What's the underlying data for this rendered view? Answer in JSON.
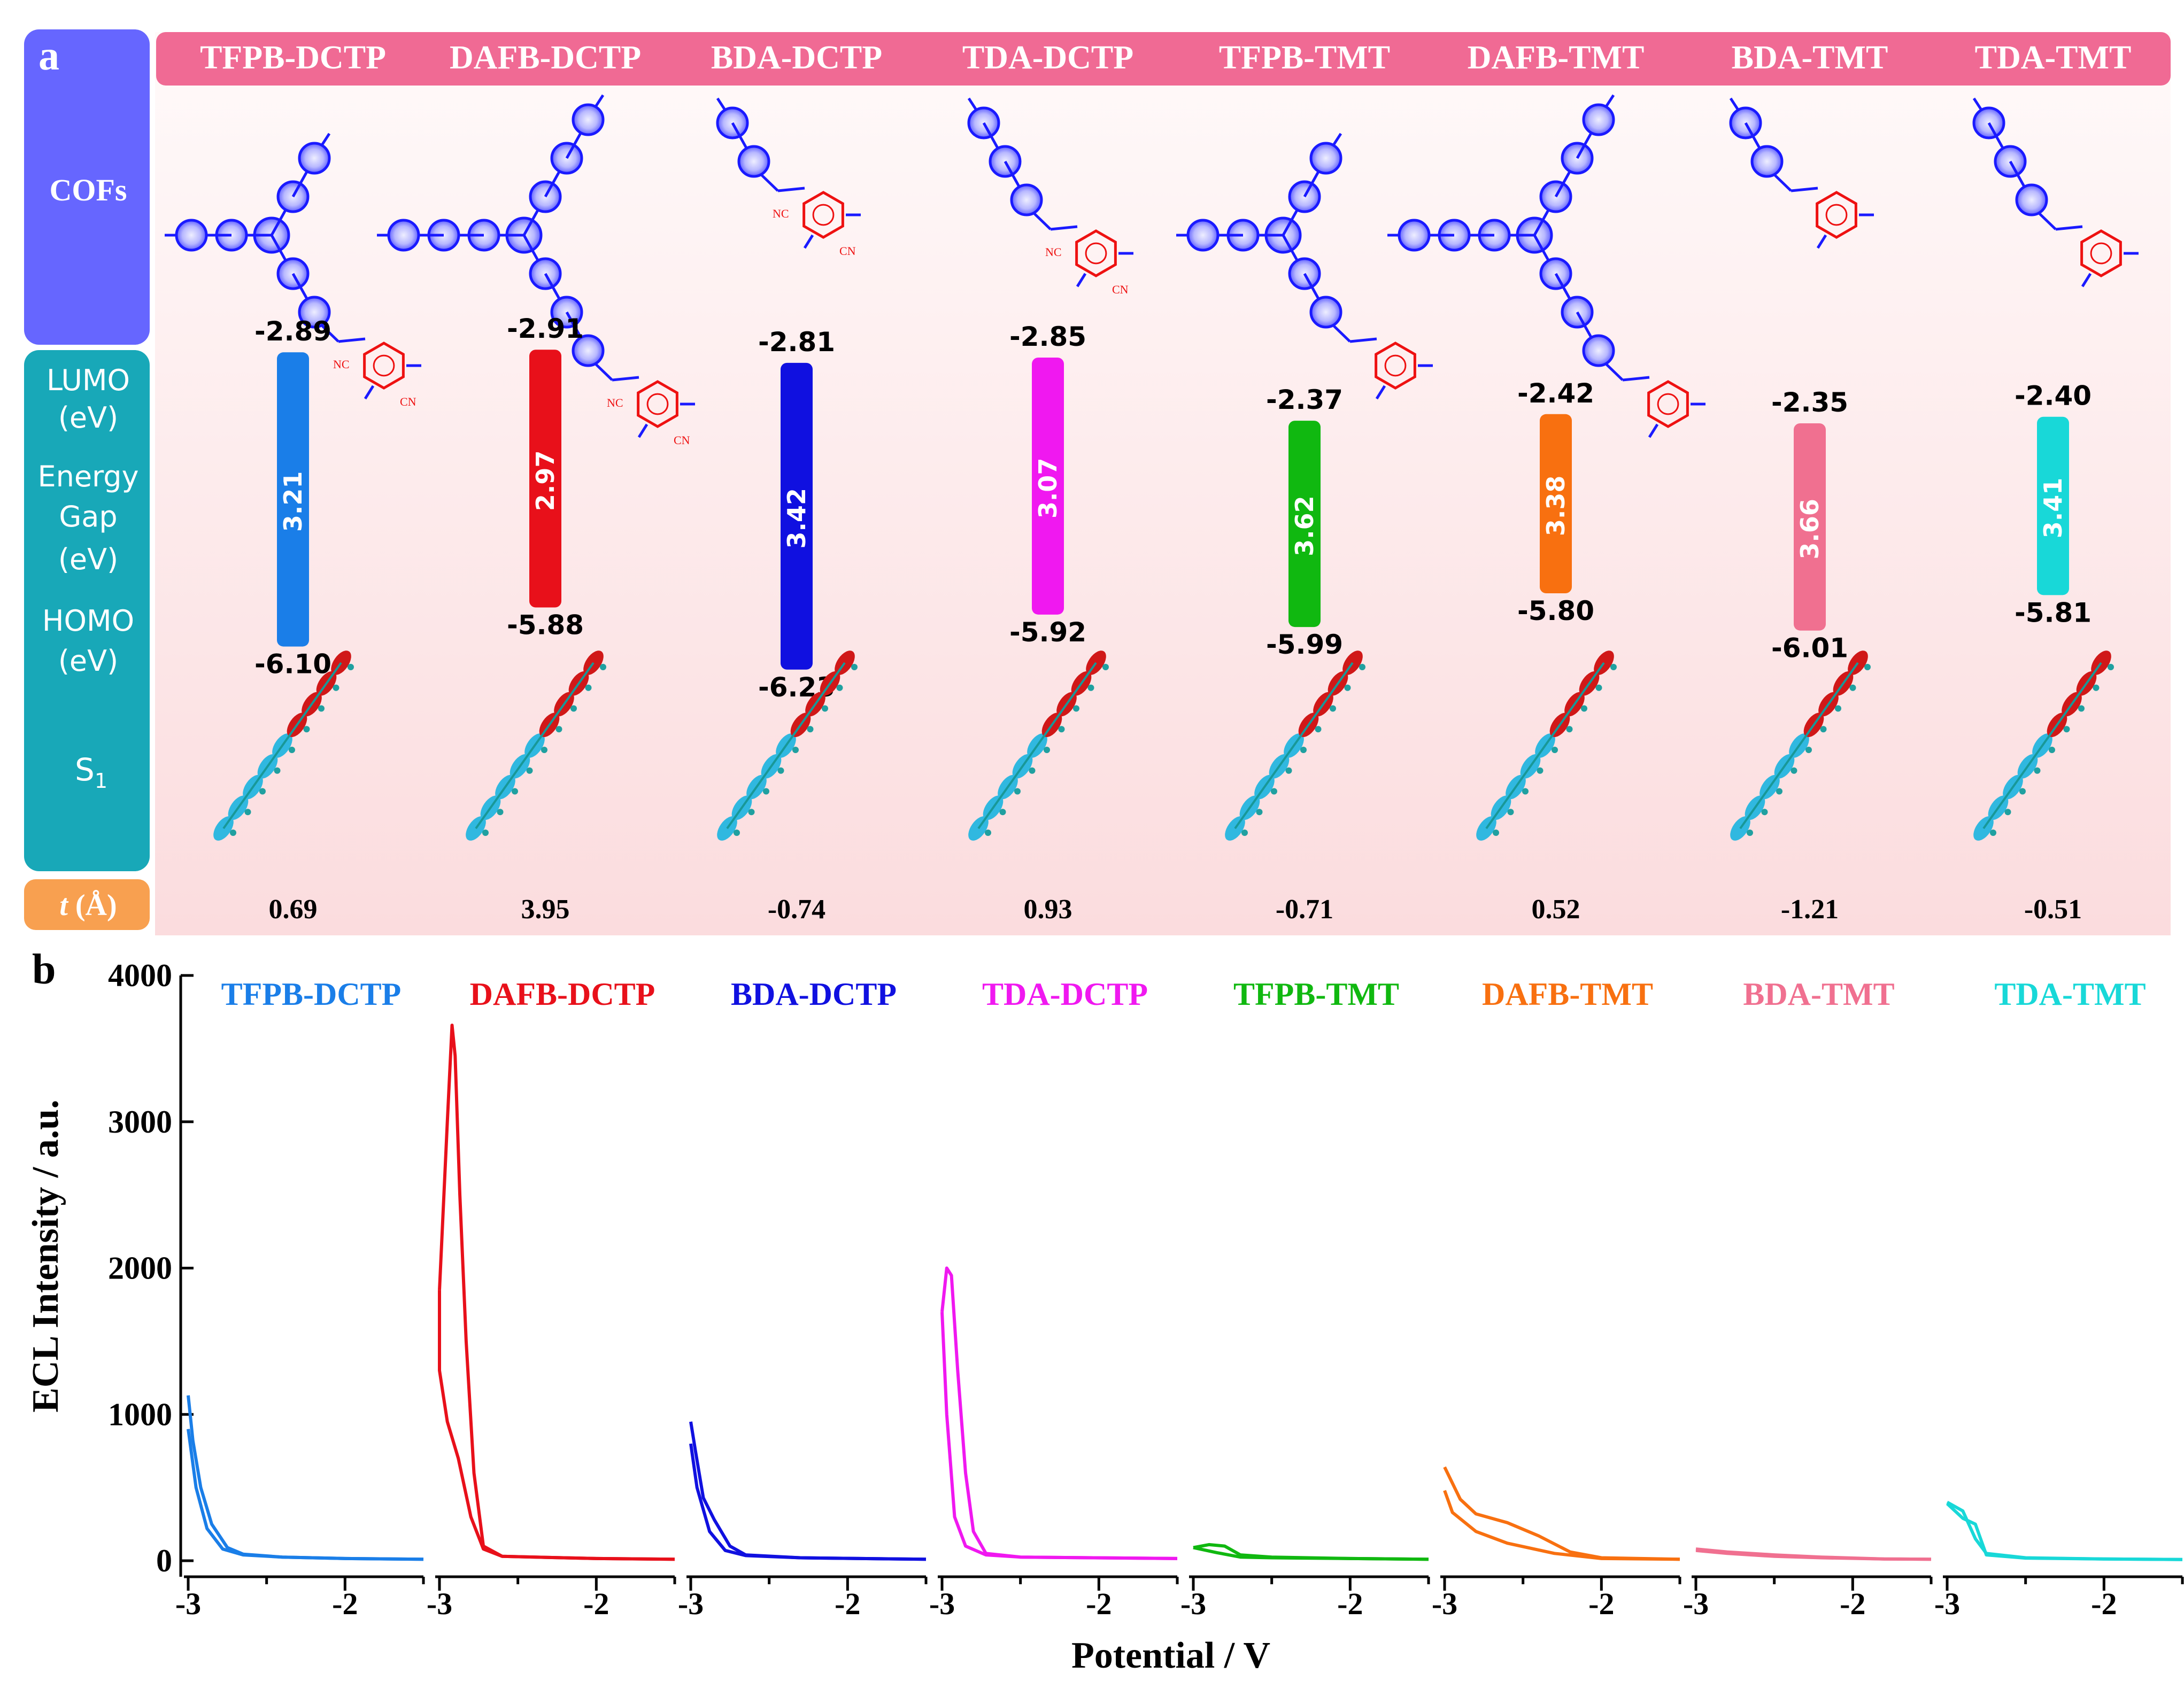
{
  "panel_a": {
    "letter": "a",
    "row_labels": {
      "cofs": "COFs",
      "lumo": [
        "LUMO",
        "(eV)"
      ],
      "gap": [
        "Energy",
        "Gap",
        "(eV)"
      ],
      "homo": [
        "HOMO",
        "(eV)"
      ],
      "s1": "S",
      "s1_sub": "1",
      "t_italic": "t",
      "t_rest": " (Å)"
    },
    "columns": [
      {
        "name": "TFPB-DCTP",
        "lumo": "-2.89",
        "gap": "3.21",
        "homo": "-6.10",
        "t": "0.69",
        "color": "#1a7ee8"
      },
      {
        "name": "DAFB-DCTP",
        "lumo": "-2.91",
        "gap": "2.97",
        "homo": "-5.88",
        "t": "3.95",
        "color": "#e8101a"
      },
      {
        "name": "BDA-DCTP",
        "lumo": "-2.81",
        "gap": "3.42",
        "homo": "-6.23",
        "t": "-0.74",
        "color": "#1010e0"
      },
      {
        "name": "TDA-DCTP",
        "lumo": "-2.85",
        "gap": "3.07",
        "homo": "-5.92",
        "t": "0.93",
        "color": "#f018f0"
      },
      {
        "name": "TFPB-TMT",
        "lumo": "-2.37",
        "gap": "3.62",
        "homo": "-5.99",
        "t": "-0.71",
        "color": "#10b810"
      },
      {
        "name": "DAFB-TMT",
        "lumo": "-2.42",
        "gap": "3.38",
        "homo": "-5.80",
        "t": "0.52",
        "color": "#f87010"
      },
      {
        "name": "BDA-TMT",
        "lumo": "-2.35",
        "gap": "3.66",
        "homo": "-6.01",
        "t": "-1.21",
        "color": "#f07090"
      },
      {
        "name": "TDA-TMT",
        "lumo": "-2.40",
        "gap": "3.41",
        "homo": "-5.81",
        "t": "-0.51",
        "color": "#18d8d8"
      }
    ]
  },
  "panel_b": {
    "letter": "b",
    "chart_data": {
      "type": "line",
      "ylabel": "ECL Intensity / a.u.",
      "xlabel": "Potential / V",
      "ylim": [
        0,
        4000
      ],
      "yticks": [
        "0",
        "1000",
        "2000",
        "3000",
        "4000"
      ],
      "xlim_each": [
        -3.0,
        -1.5
      ],
      "xticks": [
        "-3",
        "-2"
      ],
      "series": [
        {
          "name": "TFPB-DCTP",
          "color": "#1a7ee8",
          "forward": [
            [
              -3.0,
              1130
            ],
            [
              -2.97,
              820
            ],
            [
              -2.92,
              500
            ],
            [
              -2.85,
              250
            ],
            [
              -2.75,
              90
            ],
            [
              -2.65,
              45
            ],
            [
              -2.4,
              25
            ],
            [
              -2.0,
              15
            ],
            [
              -1.5,
              10
            ]
          ],
          "reverse": [
            [
              -1.5,
              10
            ],
            [
              -2.0,
              15
            ],
            [
              -2.4,
              25
            ],
            [
              -2.65,
              40
            ],
            [
              -2.78,
              80
            ],
            [
              -2.88,
              220
            ],
            [
              -2.95,
              500
            ],
            [
              -3.0,
              900
            ]
          ]
        },
        {
          "name": "DAFB-DCTP",
          "color": "#e8101a",
          "forward": [
            [
              -3.0,
              1850
            ],
            [
              -2.95,
              3000
            ],
            [
              -2.92,
              3660
            ],
            [
              -2.9,
              3450
            ],
            [
              -2.87,
              2500
            ],
            [
              -2.83,
              1500
            ],
            [
              -2.78,
              600
            ],
            [
              -2.72,
              100
            ],
            [
              -2.6,
              30
            ],
            [
              -2.0,
              15
            ],
            [
              -1.5,
              10
            ]
          ],
          "reverse": [
            [
              -1.5,
              10
            ],
            [
              -2.0,
              15
            ],
            [
              -2.6,
              30
            ],
            [
              -2.72,
              80
            ],
            [
              -2.8,
              300
            ],
            [
              -2.88,
              700
            ],
            [
              -2.95,
              950
            ],
            [
              -3.0,
              1300
            ],
            [
              -3.0,
              1850
            ]
          ]
        },
        {
          "name": "BDA-DCTP",
          "color": "#1010e0",
          "forward": [
            [
              -3.0,
              950
            ],
            [
              -2.97,
              750
            ],
            [
              -2.92,
              430
            ],
            [
              -2.85,
              280
            ],
            [
              -2.75,
              100
            ],
            [
              -2.65,
              40
            ],
            [
              -2.3,
              20
            ],
            [
              -1.5,
              10
            ]
          ],
          "reverse": [
            [
              -1.5,
              10
            ],
            [
              -2.3,
              20
            ],
            [
              -2.65,
              35
            ],
            [
              -2.78,
              70
            ],
            [
              -2.88,
              200
            ],
            [
              -2.96,
              500
            ],
            [
              -3.0,
              800
            ]
          ]
        },
        {
          "name": "TDA-DCTP",
          "color": "#f018f0",
          "forward": [
            [
              -3.0,
              1700
            ],
            [
              -2.97,
              2000
            ],
            [
              -2.94,
              1950
            ],
            [
              -2.9,
              1300
            ],
            [
              -2.85,
              600
            ],
            [
              -2.8,
              200
            ],
            [
              -2.72,
              50
            ],
            [
              -2.5,
              25
            ],
            [
              -1.5,
              15
            ]
          ],
          "reverse": [
            [
              -1.5,
              15
            ],
            [
              -2.5,
              25
            ],
            [
              -2.72,
              40
            ],
            [
              -2.85,
              100
            ],
            [
              -2.92,
              300
            ],
            [
              -2.97,
              1000
            ],
            [
              -3.0,
              1700
            ]
          ]
        },
        {
          "name": "TFPB-TMT",
          "color": "#10b810",
          "forward": [
            [
              -3.0,
              90
            ],
            [
              -2.9,
              110
            ],
            [
              -2.8,
              100
            ],
            [
              -2.7,
              40
            ],
            [
              -2.5,
              25
            ],
            [
              -2.0,
              15
            ],
            [
              -1.5,
              10
            ]
          ],
          "reverse": [
            [
              -1.5,
              10
            ],
            [
              -2.0,
              15
            ],
            [
              -2.5,
              20
            ],
            [
              -2.7,
              25
            ],
            [
              -2.85,
              55
            ],
            [
              -3.0,
              90
            ]
          ]
        },
        {
          "name": "DAFB-TMT",
          "color": "#f87010",
          "forward": [
            [
              -3.0,
              640
            ],
            [
              -2.9,
              420
            ],
            [
              -2.8,
              320
            ],
            [
              -2.6,
              260
            ],
            [
              -2.4,
              170
            ],
            [
              -2.2,
              60
            ],
            [
              -2.0,
              20
            ],
            [
              -1.5,
              10
            ]
          ],
          "reverse": [
            [
              -1.5,
              10
            ],
            [
              -2.0,
              15
            ],
            [
              -2.3,
              50
            ],
            [
              -2.6,
              120
            ],
            [
              -2.8,
              200
            ],
            [
              -2.95,
              330
            ],
            [
              -3.0,
              480
            ]
          ]
        },
        {
          "name": "BDA-TMT",
          "color": "#f07090",
          "forward": [
            [
              -3.0,
              80
            ],
            [
              -2.8,
              60
            ],
            [
              -2.5,
              40
            ],
            [
              -2.2,
              25
            ],
            [
              -1.8,
              12
            ],
            [
              -1.5,
              10
            ]
          ],
          "reverse": [
            [
              -1.5,
              10
            ],
            [
              -1.8,
              12
            ],
            [
              -2.2,
              20
            ],
            [
              -2.5,
              30
            ],
            [
              -2.8,
              50
            ],
            [
              -3.0,
              70
            ]
          ]
        },
        {
          "name": "TDA-TMT",
          "color": "#18d8d8",
          "forward": [
            [
              -3.0,
              400
            ],
            [
              -2.9,
              340
            ],
            [
              -2.82,
              150
            ],
            [
              -2.75,
              50
            ],
            [
              -2.5,
              20
            ],
            [
              -2.0,
              12
            ],
            [
              -1.5,
              8
            ]
          ],
          "reverse": [
            [
              -1.5,
              8
            ],
            [
              -2.0,
              12
            ],
            [
              -2.5,
              18
            ],
            [
              -2.75,
              40
            ],
            [
              -2.82,
              250
            ],
            [
              -2.9,
              290
            ],
            [
              -3.0,
              390
            ]
          ]
        }
      ]
    }
  }
}
